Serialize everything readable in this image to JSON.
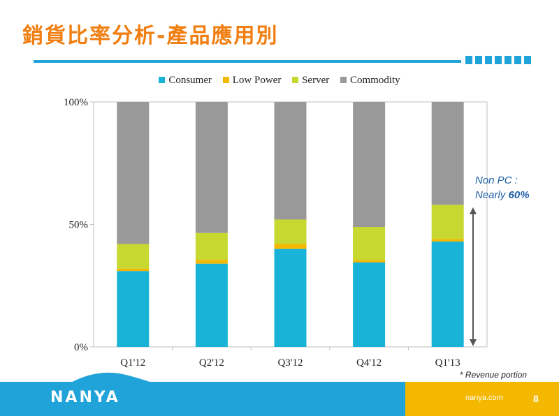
{
  "slide": {
    "title": "銷貨比率分析-產品應用別",
    "annotation_line1": "Non PC :",
    "annotation_prefix": "Nearly ",
    "annotation_value": "60%",
    "footnote": "* Revenue portion",
    "logo": "NANYA",
    "website": "nanya.com",
    "page_number": "8"
  },
  "colors": {
    "title": "#f07e10",
    "accent_blue": "#1fa3d8",
    "footer_yellow": "#f5b800"
  },
  "chart_data": {
    "type": "bar",
    "stacked": true,
    "categories": [
      "Q1'12",
      "Q2'12",
      "Q3'12",
      "Q4'12",
      "Q1'13"
    ],
    "series": [
      {
        "name": "Consumer",
        "color": "#1ab3d8",
        "values": [
          31,
          34,
          40,
          34.5,
          43
        ]
      },
      {
        "name": "Low Power",
        "color": "#f5b800",
        "values": [
          1,
          1.5,
          2,
          1,
          1
        ]
      },
      {
        "name": "Server",
        "color": "#c7d830",
        "values": [
          10,
          11,
          10,
          13.5,
          14
        ]
      },
      {
        "name": "Commodity",
        "color": "#999999",
        "values": [
          58,
          53.5,
          48,
          51,
          42
        ]
      }
    ],
    "yticks": [
      "0%",
      "50%",
      "100%"
    ],
    "ylim": [
      0,
      100
    ],
    "legend": "top-center",
    "grid": false
  }
}
